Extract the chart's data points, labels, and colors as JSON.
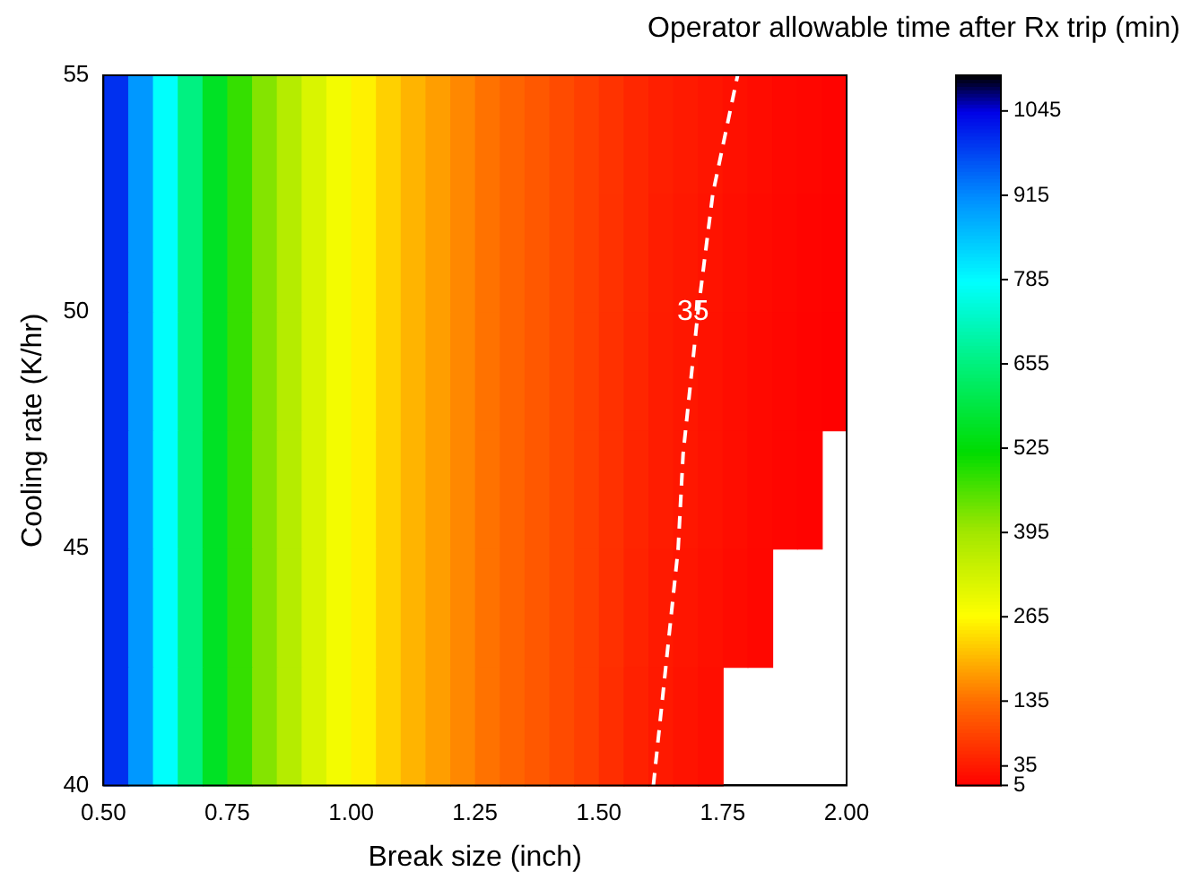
{
  "chart_data": {
    "type": "heatmap",
    "xlabel": "Break size (inch)",
    "ylabel": "Cooling rate (K/hr)",
    "clabel": "Operator allowable time after Rx trip (min)",
    "xlim": [
      0.5,
      2.0
    ],
    "ylim": [
      40,
      55
    ],
    "xticks": [
      {
        "value": 0.5,
        "label": "0.50"
      },
      {
        "value": 0.75,
        "label": "0.75"
      },
      {
        "value": 1.0,
        "label": "1.00"
      },
      {
        "value": 1.25,
        "label": "1.25"
      },
      {
        "value": 1.5,
        "label": "1.50"
      },
      {
        "value": 1.75,
        "label": "1.75"
      },
      {
        "value": 2.0,
        "label": "2.00"
      }
    ],
    "yticks": [
      40,
      45,
      50,
      55
    ],
    "clim": [
      5,
      1100
    ],
    "cticks": [
      5,
      35,
      135,
      265,
      395,
      525,
      655,
      785,
      915,
      1045
    ],
    "cells": [
      [
        1000,
        900,
        780,
        660,
        560,
        480,
        420,
        370,
        320,
        285,
        255,
        225,
        200,
        180,
        160,
        140,
        125,
        110,
        95,
        80,
        66,
        52,
        42,
        36,
        30,
        24,
        19,
        15,
        12,
        9
      ],
      [
        1000,
        900,
        780,
        660,
        560,
        480,
        420,
        370,
        320,
        285,
        255,
        225,
        200,
        180,
        160,
        140,
        125,
        110,
        95,
        80,
        65,
        51,
        40,
        34,
        28,
        22,
        17,
        13,
        10,
        7
      ],
      [
        1000,
        900,
        780,
        660,
        560,
        480,
        420,
        370,
        320,
        285,
        255,
        225,
        200,
        180,
        160,
        140,
        125,
        110,
        95,
        80,
        64,
        50,
        39,
        33,
        27,
        21,
        16,
        12,
        9,
        6
      ],
      [
        1000,
        900,
        780,
        660,
        560,
        480,
        420,
        370,
        320,
        285,
        255,
        225,
        200,
        180,
        160,
        140,
        125,
        110,
        95,
        80,
        63,
        49,
        38,
        32,
        26,
        20,
        15,
        11,
        8,
        null
      ],
      [
        1000,
        900,
        780,
        660,
        560,
        480,
        420,
        370,
        320,
        285,
        255,
        225,
        200,
        180,
        160,
        140,
        125,
        110,
        95,
        80,
        62,
        47,
        36,
        30,
        24,
        18,
        13,
        null,
        null,
        null
      ],
      [
        1000,
        900,
        780,
        660,
        560,
        480,
        420,
        370,
        320,
        285,
        255,
        225,
        200,
        180,
        160,
        140,
        125,
        110,
        95,
        80,
        60,
        45,
        35,
        28,
        22,
        null,
        null,
        null,
        null,
        null
      ]
    ],
    "series": [
      {
        "type": "line",
        "x": [
          1.61,
          1.64,
          1.66,
          1.67,
          1.7,
          1.73,
          1.78
        ],
        "values": [
          40,
          43,
          45,
          47,
          50,
          52.5,
          55
        ],
        "color": "#ffffff",
        "line_style": "dashed"
      }
    ],
    "annotations": [
      {
        "text": "35",
        "x": 1.69,
        "y": 50
      }
    ]
  }
}
